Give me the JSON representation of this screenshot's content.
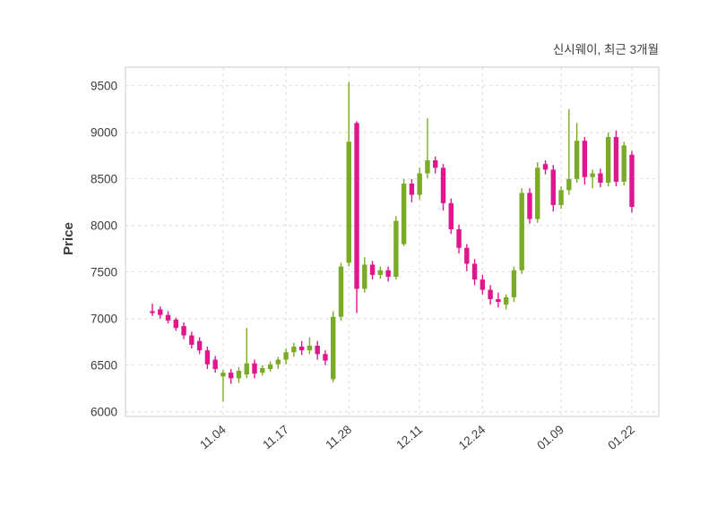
{
  "title": "신시웨이, 최근 3개월",
  "chart_data": {
    "type": "candlestick",
    "title": "신시웨이, 최근 3개월",
    "ylabel": "Price",
    "ylim": [
      5950,
      9700
    ],
    "yticks": [
      6000,
      6500,
      7000,
      7500,
      8000,
      8500,
      9000,
      9500
    ],
    "xticks": [
      {
        "label": "11.04",
        "index": 9
      },
      {
        "label": "11.17",
        "index": 17
      },
      {
        "label": "11.28",
        "index": 25
      },
      {
        "label": "12.11",
        "index": 34
      },
      {
        "label": "12.24",
        "index": 42
      },
      {
        "label": "01.09",
        "index": 52
      },
      {
        "label": "01.22",
        "index": 61
      }
    ],
    "up_color": "#7aab27",
    "down_color": "#e0168c",
    "grid_color": "#d9d9d9",
    "border_color": "#cccccc",
    "tick_color": "#3c3c3c",
    "candles": [
      [
        7080,
        7160,
        7030,
        7060
      ],
      [
        7100,
        7130,
        7000,
        7040
      ],
      [
        7040,
        7080,
        6950,
        6980
      ],
      [
        6990,
        7010,
        6870,
        6900
      ],
      [
        6920,
        6960,
        6780,
        6820
      ],
      [
        6820,
        6860,
        6680,
        6720
      ],
      [
        6760,
        6800,
        6620,
        6660
      ],
      [
        6660,
        6700,
        6460,
        6510
      ],
      [
        6560,
        6600,
        6420,
        6460
      ],
      [
        6380,
        6450,
        6110,
        6420
      ],
      [
        6420,
        6460,
        6300,
        6360
      ],
      [
        6360,
        6480,
        6310,
        6440
      ],
      [
        6400,
        6900,
        6360,
        6520
      ],
      [
        6520,
        6560,
        6360,
        6410
      ],
      [
        6420,
        6500,
        6390,
        6470
      ],
      [
        6460,
        6540,
        6430,
        6510
      ],
      [
        6510,
        6590,
        6460,
        6560
      ],
      [
        6560,
        6680,
        6510,
        6640
      ],
      [
        6640,
        6740,
        6590,
        6700
      ],
      [
        6700,
        6760,
        6610,
        6660
      ],
      [
        6660,
        6800,
        6620,
        6710
      ],
      [
        6710,
        6760,
        6560,
        6620
      ],
      [
        6620,
        6660,
        6500,
        6550
      ],
      [
        6350,
        7080,
        6320,
        7020
      ],
      [
        7020,
        7600,
        6980,
        7560
      ],
      [
        7600,
        9540,
        7560,
        8900
      ],
      [
        9100,
        9120,
        7060,
        7320
      ],
      [
        7320,
        7660,
        7280,
        7580
      ],
      [
        7580,
        7620,
        7420,
        7470
      ],
      [
        7470,
        7560,
        7430,
        7520
      ],
      [
        7520,
        7560,
        7400,
        7450
      ],
      [
        7450,
        8100,
        7420,
        8050
      ],
      [
        7800,
        8500,
        7780,
        8450
      ],
      [
        8450,
        8500,
        8250,
        8330
      ],
      [
        8330,
        8620,
        8280,
        8560
      ],
      [
        8560,
        9150,
        8510,
        8700
      ],
      [
        8700,
        8740,
        8560,
        8620
      ],
      [
        8620,
        8660,
        8160,
        8240
      ],
      [
        8240,
        8290,
        7910,
        7960
      ],
      [
        7960,
        8010,
        7700,
        7760
      ],
      [
        7760,
        7800,
        7510,
        7590
      ],
      [
        7590,
        7640,
        7360,
        7420
      ],
      [
        7420,
        7470,
        7260,
        7310
      ],
      [
        7310,
        7360,
        7150,
        7210
      ],
      [
        7210,
        7280,
        7120,
        7180
      ],
      [
        7150,
        7260,
        7100,
        7230
      ],
      [
        7230,
        7560,
        7180,
        7520
      ],
      [
        7520,
        8400,
        7480,
        8350
      ],
      [
        8350,
        8400,
        8020,
        8070
      ],
      [
        8070,
        8680,
        8030,
        8620
      ],
      [
        8660,
        8700,
        8550,
        8600
      ],
      [
        8600,
        8650,
        8150,
        8220
      ],
      [
        8220,
        8420,
        8180,
        8380
      ],
      [
        8380,
        9250,
        8330,
        8500
      ],
      [
        8500,
        9100,
        8460,
        8910
      ],
      [
        8910,
        8950,
        8440,
        8520
      ],
      [
        8520,
        8600,
        8400,
        8560
      ],
      [
        8560,
        8610,
        8410,
        8460
      ],
      [
        8460,
        9000,
        8420,
        8950
      ],
      [
        8950,
        9020,
        8420,
        8470
      ],
      [
        8470,
        8900,
        8430,
        8860
      ],
      [
        8760,
        8800,
        8140,
        8200
      ]
    ]
  }
}
